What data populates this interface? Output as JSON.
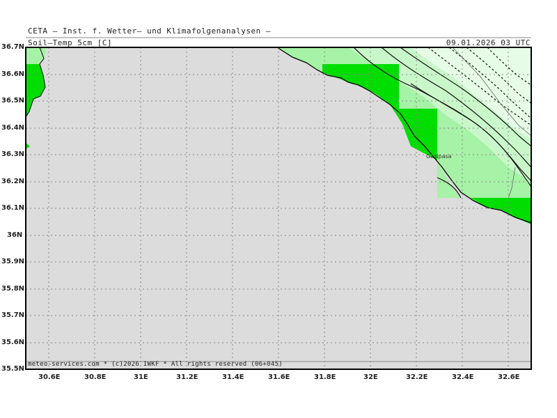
{
  "header": {
    "institute": "CETA – Inst. f. Wetter– und Klimafolgenanalysen –",
    "variable": "Soil–Temp_5cm [C]",
    "datetime": "09.01.2026 03 UTC"
  },
  "map": {
    "lat_labels": [
      "36.7N",
      "36.6N",
      "36.5N",
      "36.4N",
      "36.3N",
      "36.2N",
      "36.1N",
      "36N",
      "35.9N",
      "35.8N",
      "35.7N",
      "35.6N",
      "35.5N"
    ],
    "lon_labels": [
      "30.6E",
      "30.8E",
      "31E",
      "31.2E",
      "31.4E",
      "31.6E",
      "31.8E",
      "32E",
      "32.2E",
      "32.4E",
      "32.6E"
    ],
    "city": "Gazipasa",
    "colors": {
      "sea": "#dcdcdc",
      "bright_green": "#00dd00",
      "mid_green": "#a6f2a6",
      "light_green": "#c9f7c9",
      "pale_green": "#e6fce6"
    }
  },
  "footer": "meteo-services.com * (c)2026 IWKF * All rights reserved (06+045)"
}
